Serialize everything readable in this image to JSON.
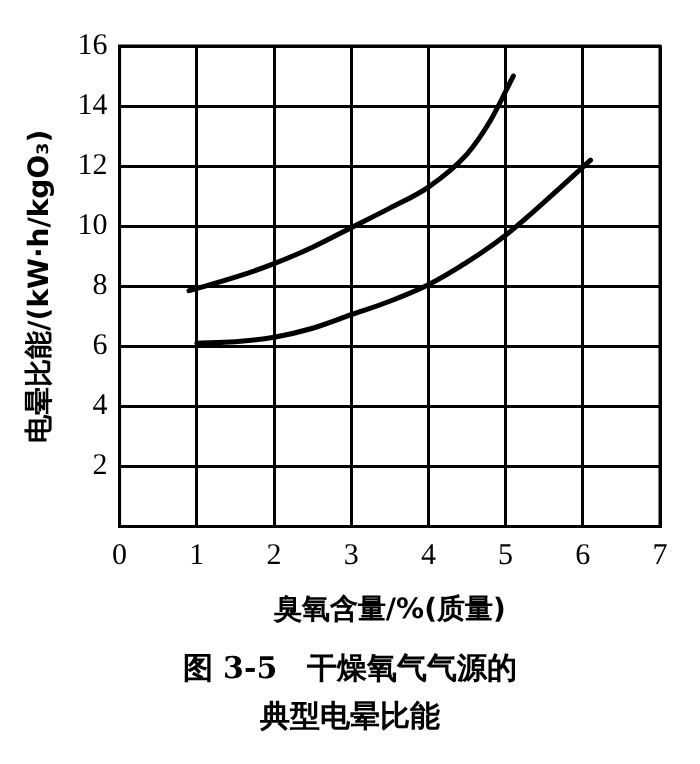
{
  "chart_data": {
    "type": "line",
    "title": "图 3-5　干燥氧气气源的典型电晕比能",
    "xlabel": "臭氧含量/%(质量)",
    "ylabel": "电晕比能/(kW·h/kgO₃)",
    "series": [
      {
        "color": "#000000",
        "x": [
          0.9,
          1.5,
          2,
          2.5,
          3,
          3.5,
          4,
          4.5,
          4.8,
          5.1
        ],
        "values": [
          7.85,
          8.3,
          8.75,
          9.3,
          9.95,
          10.6,
          11.3,
          12.4,
          13.5,
          15
        ]
      },
      {
        "color": "#000000",
        "x": [
          1,
          1.5,
          2,
          2.5,
          3,
          3.5,
          4,
          4.5,
          5,
          5.5,
          6.1
        ],
        "values": [
          6.1,
          6.15,
          6.3,
          6.6,
          7.05,
          7.5,
          8.05,
          8.8,
          9.7,
          10.8,
          12.2
        ]
      }
    ],
    "xlim": [
      0,
      7
    ],
    "xticks": [
      0,
      1,
      2,
      3,
      4,
      5,
      6,
      7
    ],
    "ylim": [
      0,
      16
    ],
    "yticks": [
      2,
      4,
      6,
      8,
      10,
      12,
      14,
      16
    ],
    "grid": true,
    "marker": "none",
    "line_style": "solid",
    "legend": false
  }
}
